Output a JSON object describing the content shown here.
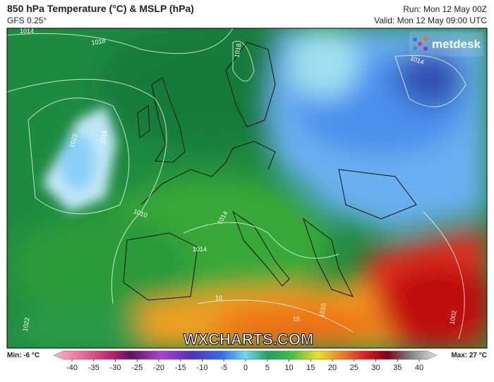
{
  "header": {
    "title": "850 hPa Temperature (°C) & MSLP (hPa)",
    "model": "GFS 0.25°",
    "run": "Run: Mon 12 May 00Z",
    "valid": "Valid: Mon 12 May 09:00 UTC"
  },
  "logo": "metdesk",
  "watermark": "WXCHARTS.COM",
  "isobar_labels": [
    "1014",
    "1018",
    "1018",
    "1022",
    "1018",
    "1010",
    "1014",
    "1014",
    "1014",
    "1002",
    "1022",
    "10",
    "15",
    "1010"
  ],
  "colorbar": {
    "min_label": "Min: -6 °C",
    "max_label": "Max: 27 °C",
    "ticks": [
      -40,
      -35,
      -30,
      -25,
      -20,
      -15,
      -10,
      -5,
      0,
      5,
      10,
      15,
      20,
      25,
      30,
      35,
      40
    ]
  }
}
